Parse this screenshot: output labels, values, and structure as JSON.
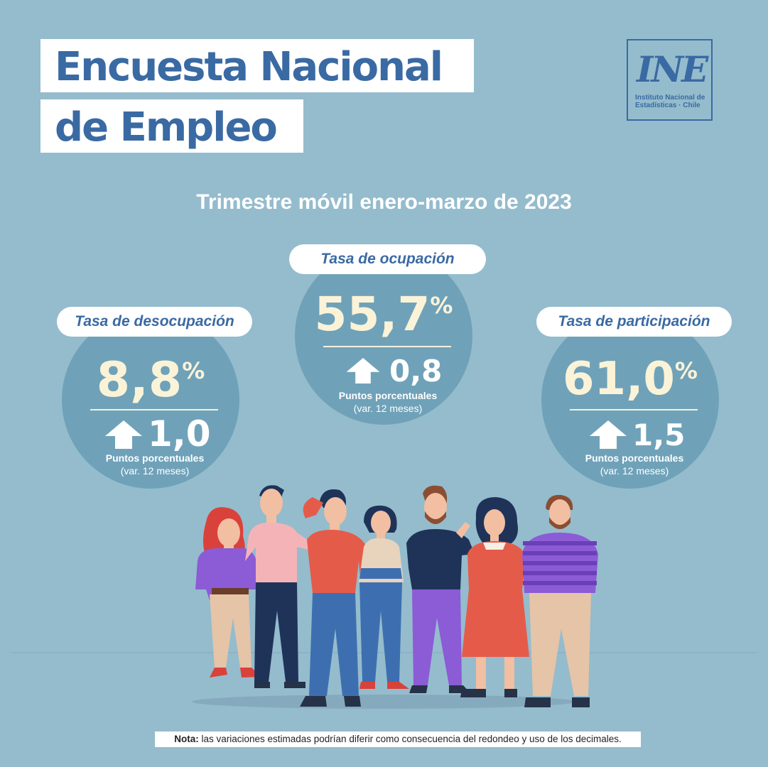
{
  "header": {
    "title_line1": "Encuesta Nacional",
    "title_line2": "de Empleo",
    "subtitle": "Trimestre móvil enero-marzo de 2023"
  },
  "logo": {
    "mark": "INE",
    "name_line1": "Instituto Nacional de",
    "name_line2": "Estadísticas · Chile"
  },
  "indicators": {
    "desocupacion": {
      "label": "Tasa de desocupación",
      "value": "8,8",
      "percent_sign": "%",
      "change": "1,0",
      "direction": "up",
      "unit": "Puntos porcentuales",
      "period": "(var. 12 meses)"
    },
    "ocupacion": {
      "label": "Tasa de ocupación",
      "value": "55,7",
      "percent_sign": "%",
      "change": "0,8",
      "direction": "up",
      "unit": "Puntos porcentuales",
      "period": "(var. 12 meses)"
    },
    "participacion": {
      "label": "Tasa de participación",
      "value": "61,0",
      "percent_sign": "%",
      "change": "1,5",
      "direction": "up",
      "unit": "Puntos porcentuales",
      "period": "(var. 12 meses)"
    }
  },
  "footer": {
    "note_label": "Nota:",
    "note_text": " las variaciones estimadas podrían diferir como consecuencia del redondeo y uso de los decimales."
  },
  "colors": {
    "background": "#94bccd",
    "circle": "#6fa2b9",
    "brand_blue": "#3a6aa3",
    "value_cream": "#fbf3d8"
  },
  "illustration": "group-of-people"
}
